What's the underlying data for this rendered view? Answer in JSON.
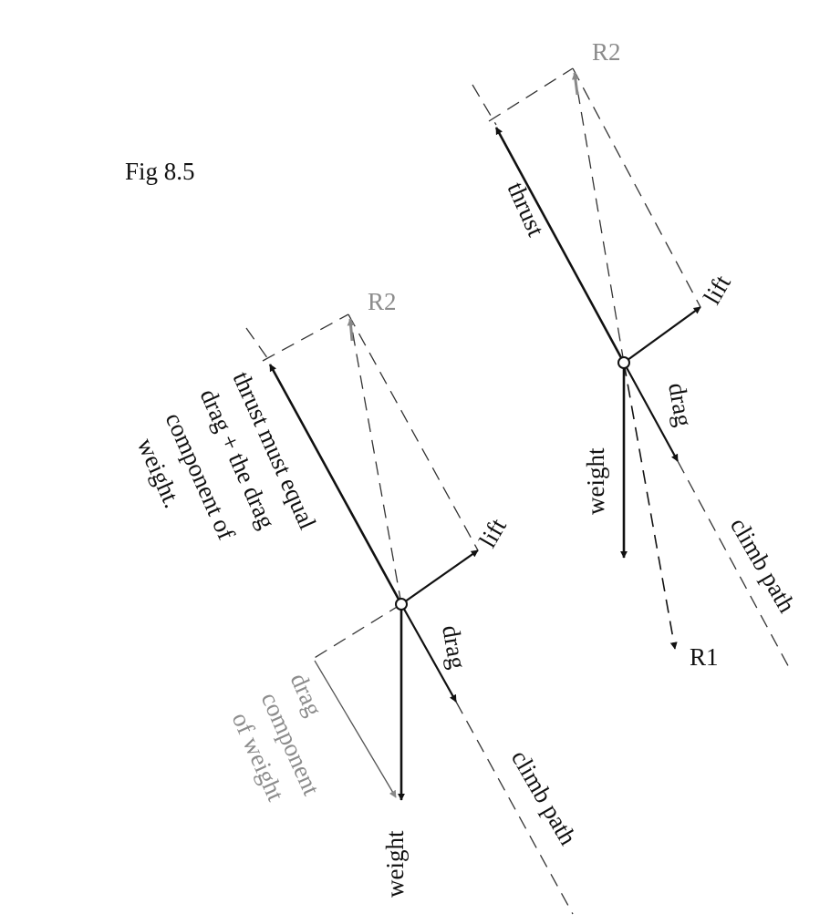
{
  "figure": {
    "caption": "Fig 8.5",
    "colors": {
      "ink": "#111111",
      "grey": "#8c8c8c",
      "background": "#ffffff"
    }
  },
  "left_diagram": {
    "resultant_label": "R2",
    "thrust_note_lines": [
      "thrust must equal",
      "drag + the drag",
      "component of",
      "weight."
    ],
    "lift_label": "lift",
    "drag_label": "drag",
    "weight_label": "weight",
    "drag_component_lines": [
      "drag",
      "component",
      "of weight"
    ],
    "climb_path_label": "climb path"
  },
  "right_diagram": {
    "resultant_label": "R2",
    "thrust_label": "thrust",
    "lift_label": "lift",
    "drag_label": "drag",
    "weight_label": "weight",
    "resultant_down_label": "R1",
    "climb_path_label": "climb path"
  }
}
